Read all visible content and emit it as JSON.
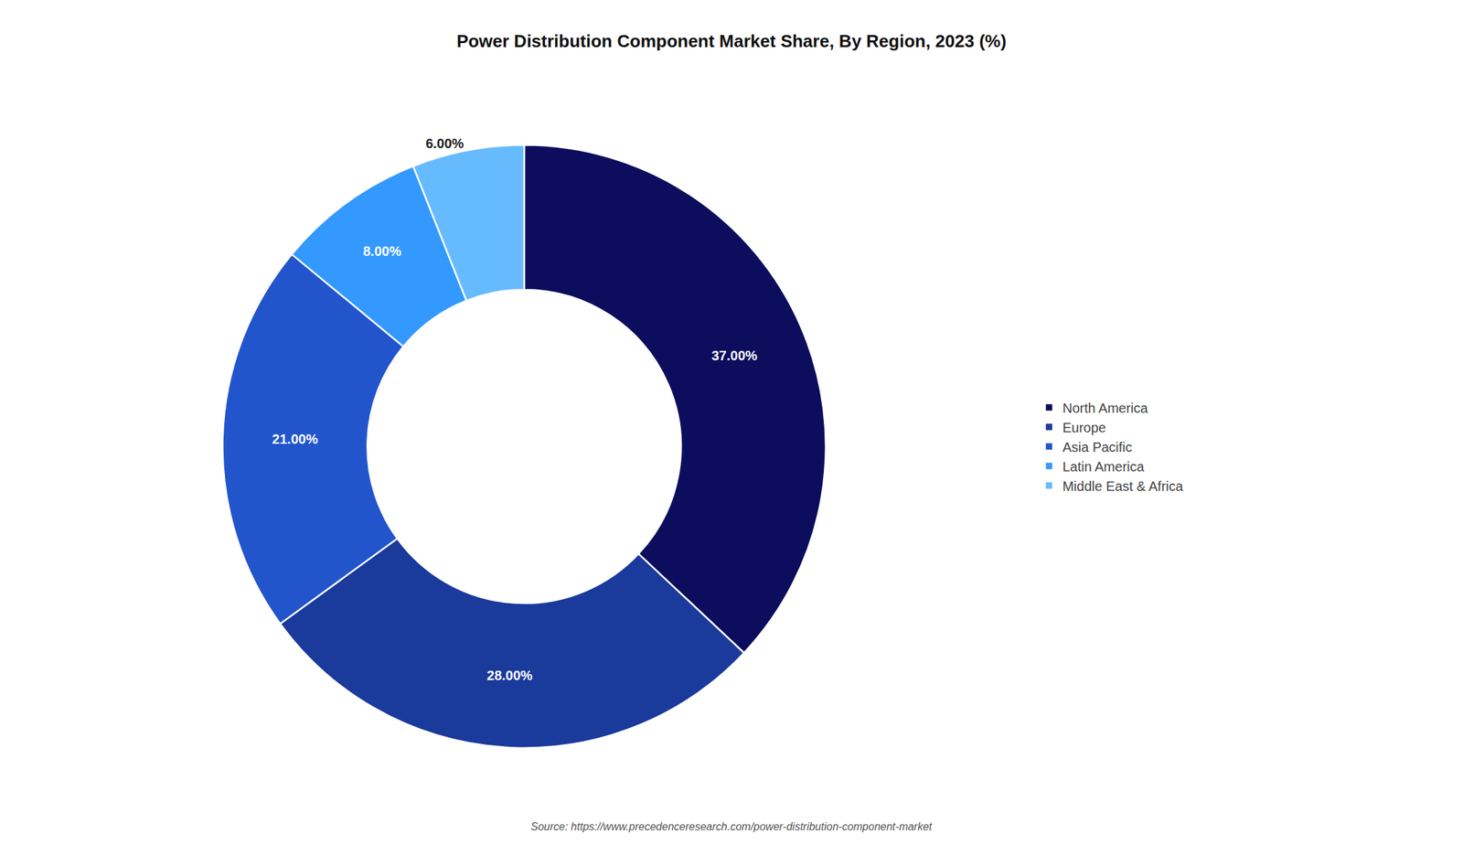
{
  "chart_data": {
    "type": "donut",
    "title": "Power Distribution Component Market Share, By Region, 2023 (%)",
    "categories": [
      "North America",
      "Europe",
      "Asia Pacific",
      "Latin America",
      "Middle East & Africa"
    ],
    "values": [
      37.0,
      28.0,
      21.0,
      8.0,
      6.0
    ],
    "value_labels": [
      "37.00%",
      "28.00%",
      "21.00%",
      "8.00%",
      "6.00%"
    ],
    "colors": [
      "#0d0d5e",
      "#1a3a9c",
      "#2255cc",
      "#3399ff",
      "#66bbff"
    ],
    "annotations": [
      "Source: https://www.precedenceresearch.com/power-distribution-component-market"
    ],
    "data_labels": true,
    "legend": "right"
  }
}
